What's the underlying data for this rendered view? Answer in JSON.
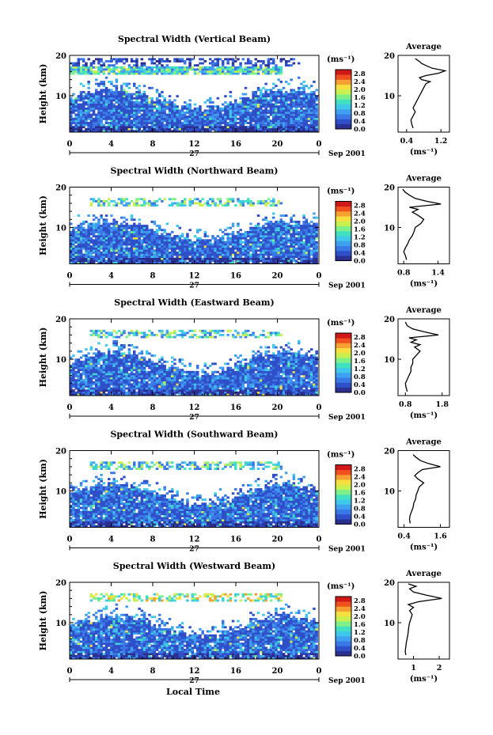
{
  "x_axis_label": "Local Time",
  "date_label": "Sep 2001",
  "day_label": "27",
  "cbar_unit": "(ms⁻¹)",
  "avg_title": "Average",
  "avg_xlabel": "(ms⁻¹)",
  "colors": [
    "#2b2f8f",
    "#2f4fc8",
    "#3a78e6",
    "#3fa0f0",
    "#3fc8ea",
    "#40e0c0",
    "#7ef08a",
    "#c8f050",
    "#f5e040",
    "#f5a030",
    "#f05020",
    "#d01818"
  ],
  "chart_data": [
    {
      "type": "heatmap",
      "title": "Spectral Width (Vertical Beam)",
      "ylabel": "Height (km)",
      "xlim": [
        0,
        24
      ],
      "ylim": [
        1,
        20
      ],
      "xticks": [
        "0",
        "4",
        "8",
        "12",
        "16",
        "20",
        "0"
      ],
      "yticks": [
        "10",
        "20"
      ],
      "colorbar": {
        "ticks": [
          "0.0",
          "0.4",
          "0.8",
          "1.2",
          "1.6",
          "2.0",
          "2.4",
          "2.8"
        ],
        "range": [
          0,
          3.0
        ]
      },
      "profile": {
        "xticks": [
          "0.4",
          "1.2"
        ],
        "xlim": [
          0.2,
          1.4
        ],
        "points": [
          [
            0.55,
            2
          ],
          [
            0.52,
            3
          ],
          [
            0.5,
            4
          ],
          [
            0.55,
            5
          ],
          [
            0.6,
            6
          ],
          [
            0.55,
            7
          ],
          [
            0.6,
            8
          ],
          [
            0.65,
            9
          ],
          [
            0.7,
            10
          ],
          [
            0.75,
            11
          ],
          [
            0.8,
            12
          ],
          [
            0.85,
            13
          ],
          [
            0.95,
            13.5
          ],
          [
            0.75,
            14
          ],
          [
            0.7,
            14.5
          ],
          [
            0.85,
            15
          ],
          [
            1.15,
            15.6
          ],
          [
            1.3,
            16.2
          ],
          [
            1.0,
            16.8
          ],
          [
            0.85,
            17.5
          ],
          [
            0.75,
            18
          ],
          [
            0.7,
            18.5
          ],
          [
            0.6,
            19.2
          ]
        ]
      }
    },
    {
      "type": "heatmap",
      "title": "Spectral Width (Northward Beam)",
      "ylabel": "Height (km)",
      "xlim": [
        0,
        24
      ],
      "ylim": [
        1,
        20
      ],
      "xticks": [
        "0",
        "4",
        "8",
        "12",
        "16",
        "20",
        "0"
      ],
      "yticks": [
        "10",
        "20"
      ],
      "colorbar": {
        "ticks": [
          "0.0",
          "0.4",
          "0.8",
          "1.2",
          "1.6",
          "2.0",
          "2.4",
          "2.8"
        ],
        "range": [
          0,
          3.0
        ]
      },
      "profile": {
        "xticks": [
          "0.8",
          "1.4"
        ],
        "xlim": [
          0.7,
          1.6
        ],
        "points": [
          [
            0.85,
            2
          ],
          [
            0.83,
            3
          ],
          [
            0.8,
            4
          ],
          [
            0.83,
            5
          ],
          [
            0.87,
            6
          ],
          [
            0.9,
            7
          ],
          [
            0.95,
            8
          ],
          [
            0.98,
            9
          ],
          [
            1.0,
            10
          ],
          [
            1.1,
            11
          ],
          [
            1.15,
            12
          ],
          [
            1.05,
            13
          ],
          [
            0.95,
            13.8
          ],
          [
            1.05,
            14.5
          ],
          [
            0.9,
            15
          ],
          [
            1.45,
            15.8
          ],
          [
            1.2,
            16.5
          ],
          [
            1.0,
            17.2
          ],
          [
            0.9,
            18
          ],
          [
            0.82,
            18.8
          ],
          [
            0.78,
            19.5
          ]
        ]
      }
    },
    {
      "type": "heatmap",
      "title": "Spectral Width (Eastward Beam)",
      "ylabel": "Height (km)",
      "xlim": [
        0,
        24
      ],
      "ylim": [
        1,
        20
      ],
      "xticks": [
        "0",
        "4",
        "8",
        "12",
        "16",
        "20",
        "0"
      ],
      "yticks": [
        "10",
        "20"
      ],
      "colorbar": {
        "ticks": [
          "0.0",
          "0.4",
          "0.8",
          "1.2",
          "1.6",
          "2.0",
          "2.4",
          "2.8"
        ],
        "range": [
          0,
          3.0
        ]
      },
      "profile": {
        "xticks": [
          "0.8",
          "1.8"
        ],
        "xlim": [
          0.6,
          2.0
        ],
        "points": [
          [
            0.85,
            2
          ],
          [
            0.82,
            3
          ],
          [
            0.8,
            4
          ],
          [
            0.85,
            5
          ],
          [
            0.9,
            6
          ],
          [
            0.95,
            7
          ],
          [
            0.95,
            8
          ],
          [
            1.0,
            9
          ],
          [
            1.0,
            10
          ],
          [
            1.1,
            11
          ],
          [
            1.2,
            12
          ],
          [
            1.05,
            13
          ],
          [
            1.2,
            13.6
          ],
          [
            0.95,
            14.2
          ],
          [
            1.1,
            14.8
          ],
          [
            0.9,
            15.3
          ],
          [
            1.7,
            16
          ],
          [
            1.3,
            16.8
          ],
          [
            1.0,
            17.5
          ],
          [
            0.85,
            18.3
          ],
          [
            0.8,
            19.2
          ]
        ]
      }
    },
    {
      "type": "heatmap",
      "title": "Spectral Width (Southward Beam)",
      "ylabel": "Height (km)",
      "xlim": [
        0,
        24
      ],
      "ylim": [
        1,
        20
      ],
      "xticks": [
        "0",
        "4",
        "8",
        "12",
        "16",
        "20",
        "0"
      ],
      "yticks": [
        "10",
        "20"
      ],
      "colorbar": {
        "ticks": [
          "0.0",
          "0.4",
          "0.8",
          "1.2",
          "1.6",
          "2.0",
          "2.4",
          "2.8"
        ],
        "range": [
          0,
          3.0
        ]
      },
      "profile": {
        "xticks": [
          "0.4",
          "1.6"
        ],
        "xlim": [
          0.2,
          1.9
        ],
        "points": [
          [
            0.6,
            2
          ],
          [
            0.58,
            3
          ],
          [
            0.6,
            4
          ],
          [
            0.65,
            5
          ],
          [
            0.7,
            6
          ],
          [
            0.72,
            7
          ],
          [
            0.78,
            8
          ],
          [
            0.8,
            9
          ],
          [
            0.85,
            10
          ],
          [
            0.9,
            11
          ],
          [
            1.05,
            12
          ],
          [
            0.85,
            13
          ],
          [
            0.75,
            13.8
          ],
          [
            0.85,
            14.5
          ],
          [
            1.0,
            15.3
          ],
          [
            1.6,
            16
          ],
          [
            1.2,
            16.8
          ],
          [
            0.95,
            17.5
          ],
          [
            0.8,
            18.3
          ],
          [
            0.7,
            19
          ]
        ]
      }
    },
    {
      "type": "heatmap",
      "title": "Spectral Width (Westward Beam)",
      "ylabel": "Height (km)",
      "xlim": [
        0,
        24
      ],
      "ylim": [
        1,
        20
      ],
      "xticks": [
        "0",
        "4",
        "8",
        "12",
        "16",
        "20",
        "0"
      ],
      "yticks": [
        "10",
        "20"
      ],
      "colorbar": {
        "ticks": [
          "0.0",
          "0.4",
          "0.8",
          "1.2",
          "1.6",
          "2.0",
          "2.4",
          "2.8"
        ],
        "range": [
          0,
          3.0
        ]
      },
      "profile": {
        "xticks": [
          "1",
          "2"
        ],
        "xlim": [
          0.4,
          2.4
        ],
        "points": [
          [
            0.7,
            2
          ],
          [
            0.68,
            3
          ],
          [
            0.7,
            4
          ],
          [
            0.72,
            5
          ],
          [
            0.75,
            6
          ],
          [
            0.78,
            7
          ],
          [
            0.8,
            8
          ],
          [
            0.82,
            9
          ],
          [
            0.85,
            10
          ],
          [
            0.9,
            11
          ],
          [
            0.95,
            12
          ],
          [
            0.85,
            13
          ],
          [
            1.0,
            13.8
          ],
          [
            0.8,
            14.5
          ],
          [
            1.2,
            15.2
          ],
          [
            2.1,
            16
          ],
          [
            1.5,
            16.8
          ],
          [
            1.0,
            17.6
          ],
          [
            0.85,
            18.4
          ],
          [
            1.1,
            19
          ],
          [
            0.8,
            19.6
          ]
        ]
      }
    }
  ]
}
